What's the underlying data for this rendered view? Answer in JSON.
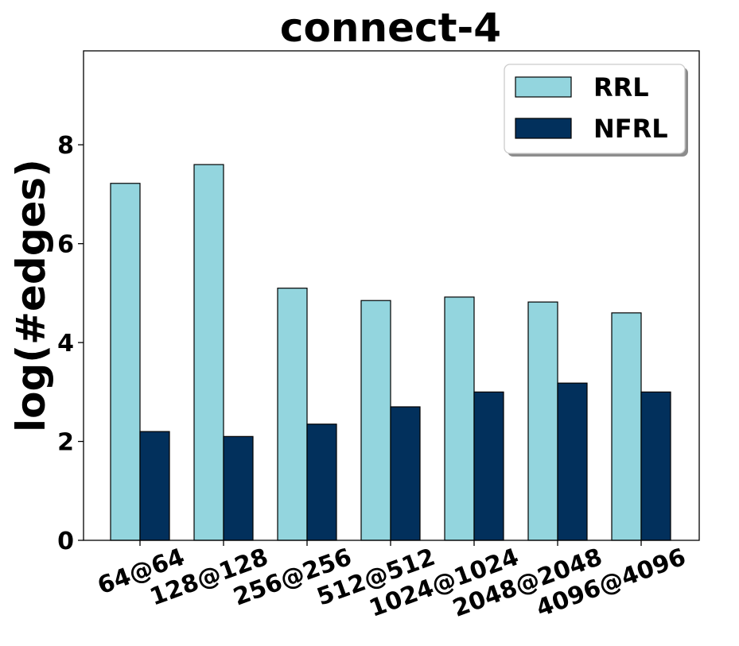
{
  "chart_data": {
    "type": "bar",
    "title": "connect-4",
    "xlabel": "",
    "ylabel": "log(#edges)",
    "categories": [
      "64@64",
      "128@128",
      "256@256",
      "512@512",
      "1024@1024",
      "2048@2048",
      "4096@4096"
    ],
    "series": [
      {
        "name": "RRL",
        "color": "#93d5de",
        "values": [
          7.22,
          7.6,
          5.1,
          4.85,
          4.92,
          4.82,
          4.6
        ]
      },
      {
        "name": "NFRL",
        "color": "#02305c",
        "values": [
          2.2,
          2.1,
          2.35,
          2.7,
          3.0,
          3.18,
          3.0
        ]
      }
    ],
    "ylim": [
      0,
      9.9
    ],
    "yticks": [
      "0",
      "2",
      "4",
      "6",
      "8"
    ],
    "grid": false,
    "legend": "top-right"
  }
}
